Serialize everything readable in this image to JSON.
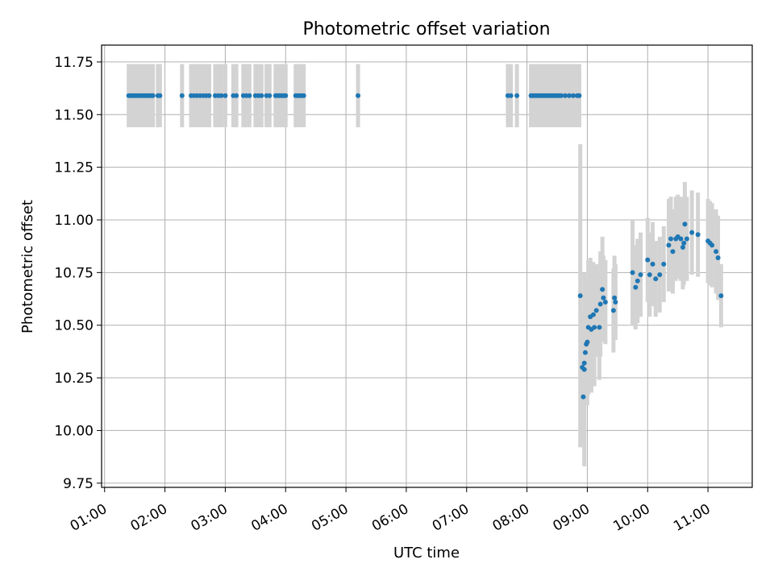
{
  "chart_data": {
    "type": "scatter",
    "title": "Photometric offset variation",
    "xlabel": "UTC time",
    "ylabel": "Photometric offset",
    "x_type": "time",
    "xlim": [
      "00:57",
      "11:44"
    ],
    "ylim": [
      9.73,
      11.83
    ],
    "xticks": [
      "01:00",
      "02:00",
      "03:00",
      "04:00",
      "05:00",
      "06:00",
      "07:00",
      "08:00",
      "09:00",
      "10:00",
      "11:00"
    ],
    "yticks": [
      "9.75",
      "10.00",
      "10.25",
      "10.50",
      "10.75",
      "11.00",
      "11.25",
      "11.50",
      "11.75"
    ],
    "grid": true,
    "colors": {
      "point": "#1f77b4",
      "errorbar": "#d3d3d3",
      "grid": "#b0b0b0"
    },
    "series": [
      {
        "points": [
          {
            "x": "01:24",
            "y": 11.59,
            "err": 0.15
          },
          {
            "x": "01:26",
            "y": 11.59,
            "err": 0.15
          },
          {
            "x": "01:28",
            "y": 11.59,
            "err": 0.15
          },
          {
            "x": "01:30",
            "y": 11.59,
            "err": 0.15
          },
          {
            "x": "01:32",
            "y": 11.59,
            "err": 0.15
          },
          {
            "x": "01:34",
            "y": 11.59,
            "err": 0.15
          },
          {
            "x": "01:36",
            "y": 11.59,
            "err": 0.15
          },
          {
            "x": "01:38",
            "y": 11.59,
            "err": 0.15
          },
          {
            "x": "01:40",
            "y": 11.59,
            "err": 0.15
          },
          {
            "x": "01:42",
            "y": 11.59,
            "err": 0.15
          },
          {
            "x": "01:44",
            "y": 11.59,
            "err": 0.15
          },
          {
            "x": "01:46",
            "y": 11.59,
            "err": 0.15
          },
          {
            "x": "01:48",
            "y": 11.59,
            "err": 0.15
          },
          {
            "x": "01:53",
            "y": 11.59,
            "err": 0.15
          },
          {
            "x": "01:55",
            "y": 11.59,
            "err": 0.15
          },
          {
            "x": "02:17",
            "y": 11.59,
            "err": 0.15
          },
          {
            "x": "02:26",
            "y": 11.59,
            "err": 0.15
          },
          {
            "x": "02:29",
            "y": 11.59,
            "err": 0.15
          },
          {
            "x": "02:32",
            "y": 11.59,
            "err": 0.15
          },
          {
            "x": "02:35",
            "y": 11.59,
            "err": 0.15
          },
          {
            "x": "02:38",
            "y": 11.59,
            "err": 0.15
          },
          {
            "x": "02:41",
            "y": 11.59,
            "err": 0.15
          },
          {
            "x": "02:44",
            "y": 11.59,
            "err": 0.15
          },
          {
            "x": "02:50",
            "y": 11.59,
            "err": 0.15
          },
          {
            "x": "02:53",
            "y": 11.59,
            "err": 0.15
          },
          {
            "x": "02:56",
            "y": 11.59,
            "err": 0.15
          },
          {
            "x": "03:00",
            "y": 11.59,
            "err": 0.15
          },
          {
            "x": "03:08",
            "y": 11.59,
            "err": 0.15
          },
          {
            "x": "03:11",
            "y": 11.59,
            "err": 0.15
          },
          {
            "x": "03:18",
            "y": 11.59,
            "err": 0.15
          },
          {
            "x": "03:21",
            "y": 11.59,
            "err": 0.15
          },
          {
            "x": "03:24",
            "y": 11.59,
            "err": 0.15
          },
          {
            "x": "03:30",
            "y": 11.59,
            "err": 0.15
          },
          {
            "x": "03:33",
            "y": 11.59,
            "err": 0.15
          },
          {
            "x": "03:36",
            "y": 11.59,
            "err": 0.15
          },
          {
            "x": "03:41",
            "y": 11.59,
            "err": 0.15
          },
          {
            "x": "03:44",
            "y": 11.59,
            "err": 0.15
          },
          {
            "x": "03:50",
            "y": 11.59,
            "err": 0.15
          },
          {
            "x": "03:52",
            "y": 11.59,
            "err": 0.15
          },
          {
            "x": "03:54",
            "y": 11.59,
            "err": 0.15
          },
          {
            "x": "03:56",
            "y": 11.59,
            "err": 0.15
          },
          {
            "x": "03:58",
            "y": 11.59,
            "err": 0.15
          },
          {
            "x": "04:00",
            "y": 11.59,
            "err": 0.15
          },
          {
            "x": "04:10",
            "y": 11.59,
            "err": 0.15
          },
          {
            "x": "04:12",
            "y": 11.59,
            "err": 0.15
          },
          {
            "x": "04:14",
            "y": 11.59,
            "err": 0.15
          },
          {
            "x": "04:16",
            "y": 11.59,
            "err": 0.15
          },
          {
            "x": "04:18",
            "y": 11.59,
            "err": 0.15
          },
          {
            "x": "05:12",
            "y": 11.59,
            "err": 0.15
          },
          {
            "x": "07:41",
            "y": 11.59,
            "err": 0.15
          },
          {
            "x": "07:44",
            "y": 11.59,
            "err": 0.15
          },
          {
            "x": "07:50",
            "y": 11.59,
            "err": 0.15
          },
          {
            "x": "08:04",
            "y": 11.59,
            "err": 0.15
          },
          {
            "x": "08:06",
            "y": 11.59,
            "err": 0.15
          },
          {
            "x": "08:08",
            "y": 11.59,
            "err": 0.15
          },
          {
            "x": "08:10",
            "y": 11.59,
            "err": 0.15
          },
          {
            "x": "08:12",
            "y": 11.59,
            "err": 0.15
          },
          {
            "x": "08:14",
            "y": 11.59,
            "err": 0.15
          },
          {
            "x": "08:16",
            "y": 11.59,
            "err": 0.15
          },
          {
            "x": "08:18",
            "y": 11.59,
            "err": 0.15
          },
          {
            "x": "08:20",
            "y": 11.59,
            "err": 0.15
          },
          {
            "x": "08:22",
            "y": 11.59,
            "err": 0.15
          },
          {
            "x": "08:24",
            "y": 11.59,
            "err": 0.15
          },
          {
            "x": "08:26",
            "y": 11.59,
            "err": 0.15
          },
          {
            "x": "08:28",
            "y": 11.59,
            "err": 0.15
          },
          {
            "x": "08:30",
            "y": 11.59,
            "err": 0.15
          },
          {
            "x": "08:32",
            "y": 11.59,
            "err": 0.15
          },
          {
            "x": "08:34",
            "y": 11.59,
            "err": 0.15
          },
          {
            "x": "08:38",
            "y": 11.59,
            "err": 0.15
          },
          {
            "x": "08:42",
            "y": 11.59,
            "err": 0.15
          },
          {
            "x": "08:46",
            "y": 11.59,
            "err": 0.15
          },
          {
            "x": "08:50",
            "y": 11.59,
            "err": 0.15
          },
          {
            "x": "08:52",
            "y": 11.59,
            "err": 0.15
          },
          {
            "x": "08:53",
            "y": 10.64,
            "err": 0.72
          },
          {
            "x": "08:55",
            "y": 10.3,
            "err": 0.25
          },
          {
            "x": "08:56",
            "y": 10.16,
            "err": 0.22
          },
          {
            "x": "08:57",
            "y": 10.32,
            "err": 0.2
          },
          {
            "x": "08:57",
            "y": 10.29,
            "err": 0.46
          },
          {
            "x": "08:58",
            "y": 10.37,
            "err": 0.25
          },
          {
            "x": "08:59",
            "y": 10.41,
            "err": 0.28
          },
          {
            "x": "09:00",
            "y": 10.42,
            "err": 0.3
          },
          {
            "x": "09:01",
            "y": 10.49,
            "err": 0.32
          },
          {
            "x": "09:03",
            "y": 10.54,
            "err": 0.28
          },
          {
            "x": "09:04",
            "y": 10.48,
            "err": 0.3
          },
          {
            "x": "09:06",
            "y": 10.55,
            "err": 0.25
          },
          {
            "x": "09:07",
            "y": 10.49,
            "err": 0.28
          },
          {
            "x": "09:09",
            "y": 10.57,
            "err": 0.22
          },
          {
            "x": "09:12",
            "y": 10.49,
            "err": 0.25
          },
          {
            "x": "09:13",
            "y": 10.6,
            "err": 0.25
          },
          {
            "x": "09:15",
            "y": 10.67,
            "err": 0.25
          },
          {
            "x": "09:16",
            "y": 10.63,
            "err": 0.2
          },
          {
            "x": "09:18",
            "y": 10.61,
            "err": 0.2
          },
          {
            "x": "09:26",
            "y": 10.57,
            "err": 0.2
          },
          {
            "x": "09:27",
            "y": 10.63,
            "err": 0.2
          },
          {
            "x": "09:28",
            "y": 10.61,
            "err": 0.18
          },
          {
            "x": "09:45",
            "y": 10.75,
            "err": 0.25
          },
          {
            "x": "09:48",
            "y": 10.68,
            "err": 0.2
          },
          {
            "x": "09:50",
            "y": 10.71,
            "err": 0.2
          },
          {
            "x": "09:53",
            "y": 10.74,
            "err": 0.2
          },
          {
            "x": "10:00",
            "y": 10.81,
            "err": 0.2
          },
          {
            "x": "10:02",
            "y": 10.74,
            "err": 0.2
          },
          {
            "x": "10:05",
            "y": 10.79,
            "err": 0.2
          },
          {
            "x": "10:08",
            "y": 10.72,
            "err": 0.18
          },
          {
            "x": "10:12",
            "y": 10.74,
            "err": 0.18
          },
          {
            "x": "10:16",
            "y": 10.79,
            "err": 0.18
          },
          {
            "x": "10:21",
            "y": 10.88,
            "err": 0.22
          },
          {
            "x": "10:23",
            "y": 10.91,
            "err": 0.2
          },
          {
            "x": "10:25",
            "y": 10.85,
            "err": 0.2
          },
          {
            "x": "10:28",
            "y": 10.91,
            "err": 0.2
          },
          {
            "x": "10:30",
            "y": 10.92,
            "err": 0.2
          },
          {
            "x": "10:33",
            "y": 10.91,
            "err": 0.2
          },
          {
            "x": "10:35",
            "y": 10.87,
            "err": 0.2
          },
          {
            "x": "10:36",
            "y": 10.89,
            "err": 0.2
          },
          {
            "x": "10:37",
            "y": 10.98,
            "err": 0.2
          },
          {
            "x": "10:39",
            "y": 10.91,
            "err": 0.2
          },
          {
            "x": "10:44",
            "y": 10.94,
            "err": 0.2
          },
          {
            "x": "10:50",
            "y": 10.93,
            "err": 0.2
          },
          {
            "x": "11:00",
            "y": 10.9,
            "err": 0.2
          },
          {
            "x": "11:02",
            "y": 10.89,
            "err": 0.2
          },
          {
            "x": "11:04",
            "y": 10.88,
            "err": 0.2
          },
          {
            "x": "11:08",
            "y": 10.85,
            "err": 0.2
          },
          {
            "x": "11:10",
            "y": 10.82,
            "err": 0.2
          },
          {
            "x": "11:13",
            "y": 10.64,
            "err": 0.15
          }
        ]
      }
    ]
  }
}
